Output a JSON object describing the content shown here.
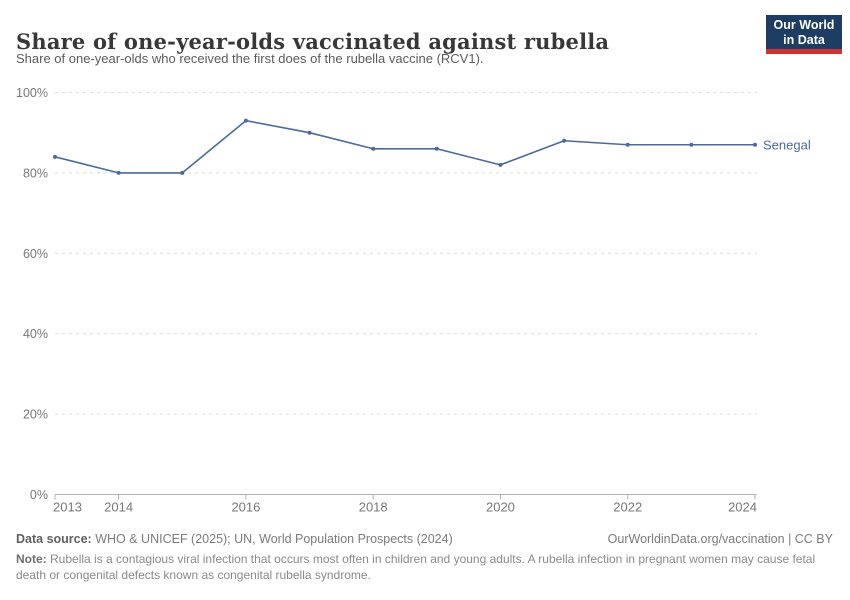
{
  "header": {
    "title": "Share of one-year-olds vaccinated against rubella",
    "subtitle": "Share of one-year-olds who received the first does of the rubella vaccine (RCV1).",
    "logo": {
      "line1": "Our World",
      "line2": "in Data"
    }
  },
  "chart_data": {
    "type": "line",
    "title": "Share of one-year-olds vaccinated against rubella",
    "x": [
      2013,
      2014,
      2015,
      2016,
      2017,
      2018,
      2019,
      2020,
      2021,
      2022,
      2023,
      2024
    ],
    "series": [
      {
        "name": "Senegal",
        "values": [
          84,
          80,
          80,
          93,
          90,
          86,
          86,
          82,
          88,
          87,
          87,
          87
        ],
        "color": "#4c6a9c"
      }
    ],
    "ylabel": "",
    "xlabel": "",
    "ylim": [
      0,
      100
    ],
    "yticks": [
      0,
      20,
      40,
      60,
      80,
      100
    ],
    "ytick_labels": [
      "0%",
      "20%",
      "40%",
      "60%",
      "80%",
      "100%"
    ],
    "xticks": [
      2013,
      2014,
      2016,
      2018,
      2020,
      2022,
      2024
    ],
    "grid": "horizontal-dashed",
    "legend_position": "end-of-line-label",
    "marker": "dot"
  },
  "footer": {
    "data_source_label": "Data source:",
    "data_source": "WHO & UNICEF (2025); UN, World Population Prospects (2024)",
    "attribution": "OurWorldinData.org/vaccination | CC BY",
    "note_label": "Note:",
    "note": "Rubella is a contagious viral infection that occurs most often in children and young adults. A rubella infection in pregnant women may cause fetal death or congenital defects known as congenital rubella syndrome."
  },
  "colors": {
    "series": "#4c6a9c",
    "grid": "#dcdcdc",
    "axis": "#b3b3b3",
    "tick_text": "#787878",
    "logo_bg": "#1d3d63",
    "logo_accent": "#cc3432",
    "title_text": "#383838"
  }
}
